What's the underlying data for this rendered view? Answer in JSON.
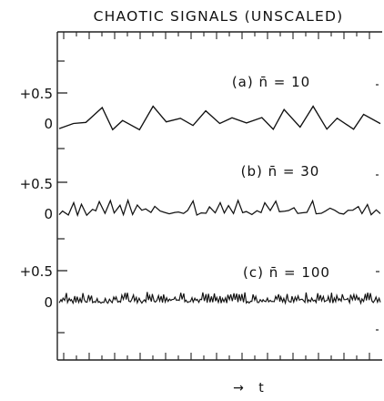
{
  "chart_data": {
    "type": "line",
    "title": "CHAOTIC SIGNALS (UNSCALED)",
    "xlabel": "t",
    "x_arrow": "→",
    "y_tick_labels": [
      "+0.5",
      "0"
    ],
    "grid": false,
    "panels": [
      {
        "label": "(a) n̄ = 10",
        "y_ticks": [
          0.5,
          0
        ],
        "series": [
          {
            "peaks_per_unit_time": 10,
            "amplitude_range": [
              -0.04,
              0.34
            ]
          }
        ]
      },
      {
        "label": "(b) n̄ = 30",
        "y_ticks": [
          0.5,
          0
        ],
        "series": [
          {
            "peaks_per_unit_time": 30,
            "amplitude_range": [
              -0.02,
              0.22
            ]
          }
        ]
      },
      {
        "label": "(c) n̄ = 100",
        "y_ticks": [
          0.5,
          0
        ],
        "series": [
          {
            "peaks_per_unit_time": 100,
            "amplitude_range": [
              -0.01,
              0.17
            ]
          }
        ]
      }
    ]
  }
}
